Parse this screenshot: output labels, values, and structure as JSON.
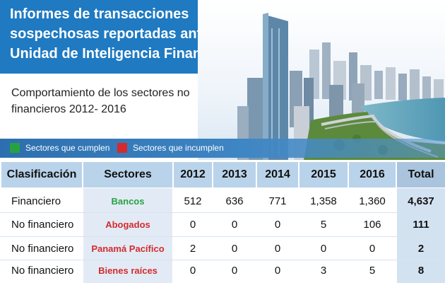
{
  "header": {
    "title": "Informes de transacciones sospechosas reportadas ante la Unidad de Inteligencia Financiera",
    "subtitle": "Comportamiento de los sectores no financieros 2012- 2016"
  },
  "legend": {
    "compliant": {
      "label": "Sectores que cumplen",
      "color": "#27a243"
    },
    "noncompliant": {
      "label": "Sectores que incumplen",
      "color": "#d42a2f"
    }
  },
  "colors": {
    "banner": "#1f7ac2",
    "header_cell": "#b9d3ea",
    "sector_cell": "#e2ebf5"
  },
  "chart_data": {
    "type": "table",
    "title": "Informes de transacciones sospechosas reportadas ante la Unidad de Inteligencia Financiera",
    "columns": [
      "Clasificación",
      "Sectores",
      "2012",
      "2013",
      "2014",
      "2015",
      "2016",
      "Total"
    ],
    "rows": [
      {
        "clasificacion": "Financiero",
        "sector": "Bancos",
        "status": "cumple",
        "values": [
          "512",
          "636",
          "771",
          "1,358",
          "1,360"
        ],
        "total": "4,637"
      },
      {
        "clasificacion": "No financiero",
        "sector": "Abogados",
        "status": "incumple",
        "values": [
          "0",
          "0",
          "0",
          "5",
          "106"
        ],
        "total": "111"
      },
      {
        "clasificacion": "No financiero",
        "sector": "Panamá Pacífico",
        "status": "incumple",
        "values": [
          "2",
          "0",
          "0",
          "0",
          "0"
        ],
        "total": "2"
      },
      {
        "clasificacion": "No financiero",
        "sector": "Bienes raíces",
        "status": "incumple",
        "values": [
          "0",
          "0",
          "0",
          "3",
          "5"
        ],
        "total": "8"
      }
    ]
  }
}
